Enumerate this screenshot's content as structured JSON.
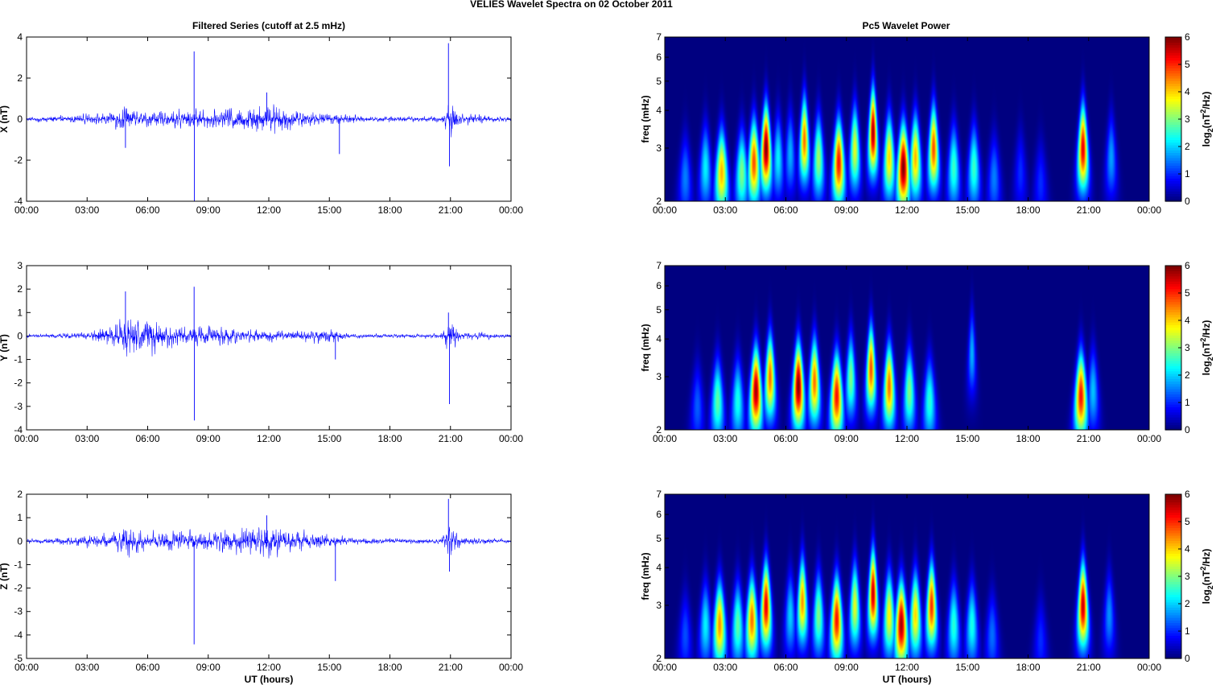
{
  "figure": {
    "title": "VELIES Wavelet Spectra on 02 October   2011",
    "left_title": "Filtered Series (cutoff at 2.5 mHz)",
    "right_title": "Pc5 Wavelet Power"
  },
  "colors": {
    "trace": "#0000ff",
    "axis": "#000000",
    "grid": "#d9d9d9",
    "background": "#00008f"
  },
  "chart_data": [
    {
      "type": "line",
      "name": "X component",
      "xlabel": "",
      "ylabel": "X (nT)",
      "xlim": [
        0,
        24
      ],
      "ylim": [
        -4,
        4
      ],
      "xticks": [
        "00:00",
        "03:00",
        "06:00",
        "09:00",
        "12:00",
        "15:00",
        "18:00",
        "21:00",
        "00:00"
      ],
      "yticks": [
        -4,
        -2,
        0,
        2,
        4
      ],
      "amplitude_envelope": [
        [
          0,
          0.12
        ],
        [
          2,
          0.2
        ],
        [
          4,
          0.3
        ],
        [
          4.8,
          0.7
        ],
        [
          5.5,
          0.4
        ],
        [
          6.5,
          0.4
        ],
        [
          8,
          0.5
        ],
        [
          9,
          0.45
        ],
        [
          10.5,
          0.6
        ],
        [
          11.8,
          0.9
        ],
        [
          13,
          0.6
        ],
        [
          14.5,
          0.3
        ],
        [
          15.5,
          0.3
        ],
        [
          17,
          0.15
        ],
        [
          20.5,
          0.15
        ],
        [
          21,
          1.0
        ],
        [
          21.5,
          0.3
        ],
        [
          24,
          0.1
        ]
      ],
      "spikes": [
        [
          8.3,
          3.3
        ],
        [
          8.31,
          -4.0
        ],
        [
          11.9,
          1.3
        ],
        [
          15.5,
          -1.7
        ],
        [
          20.9,
          3.7
        ],
        [
          20.95,
          -2.3
        ],
        [
          4.9,
          -1.4
        ]
      ]
    },
    {
      "type": "line",
      "name": "Y component",
      "xlabel": "",
      "ylabel": "Y (nT)",
      "xlim": [
        0,
        24
      ],
      "ylim": [
        -4,
        3
      ],
      "xticks": [
        "00:00",
        "03:00",
        "06:00",
        "09:00",
        "12:00",
        "15:00",
        "18:00",
        "21:00",
        "00:00"
      ],
      "yticks": [
        -4,
        -3,
        -2,
        -1,
        0,
        1,
        2,
        3
      ],
      "amplitude_envelope": [
        [
          0,
          0.08
        ],
        [
          3,
          0.15
        ],
        [
          4.5,
          0.6
        ],
        [
          5,
          0.9
        ],
        [
          6.5,
          0.8
        ],
        [
          7.5,
          0.4
        ],
        [
          9,
          0.45
        ],
        [
          10.5,
          0.35
        ],
        [
          11.5,
          0.3
        ],
        [
          13,
          0.2
        ],
        [
          15,
          0.35
        ],
        [
          16,
          0.1
        ],
        [
          20.5,
          0.1
        ],
        [
          21,
          0.8
        ],
        [
          21.5,
          0.2
        ],
        [
          24,
          0.08
        ]
      ],
      "spikes": [
        [
          4.9,
          1.9
        ],
        [
          8.3,
          2.1
        ],
        [
          8.31,
          -3.6
        ],
        [
          20.9,
          1.0
        ],
        [
          20.95,
          -2.9
        ],
        [
          15.3,
          -1.0
        ]
      ]
    },
    {
      "type": "line",
      "name": "Z component",
      "xlabel": "UT (hours)",
      "ylabel": "Z (nT)",
      "xlim": [
        0,
        24
      ],
      "ylim": [
        -5,
        2
      ],
      "xticks": [
        "00:00",
        "03:00",
        "06:00",
        "09:00",
        "12:00",
        "15:00",
        "18:00",
        "21:00",
        "00:00"
      ],
      "yticks": [
        -5,
        -4,
        -3,
        -2,
        -1,
        0,
        1,
        2
      ],
      "amplitude_envelope": [
        [
          0,
          0.08
        ],
        [
          2,
          0.2
        ],
        [
          4.5,
          0.4
        ],
        [
          5,
          0.7
        ],
        [
          6,
          0.4
        ],
        [
          8,
          0.45
        ],
        [
          10.5,
          0.55
        ],
        [
          11.8,
          0.8
        ],
        [
          13,
          0.5
        ],
        [
          15,
          0.35
        ],
        [
          16,
          0.15
        ],
        [
          20.5,
          0.1
        ],
        [
          21,
          0.9
        ],
        [
          21.5,
          0.2
        ],
        [
          24,
          0.08
        ]
      ],
      "spikes": [
        [
          8.3,
          -4.4
        ],
        [
          11.9,
          1.1
        ],
        [
          15.3,
          -1.7
        ],
        [
          20.9,
          1.8
        ],
        [
          20.95,
          -1.3
        ]
      ]
    },
    {
      "type": "heatmap",
      "name": "Pc5 power X",
      "ylabel": "freq (mHz)",
      "colorbar_label": "log2(nT^2/Hz)",
      "xlim": [
        0,
        24
      ],
      "ylim": [
        2,
        7
      ],
      "yscale": "log",
      "xticks": [
        "00:00",
        "03:00",
        "06:00",
        "09:00",
        "12:00",
        "15:00",
        "18:00",
        "21:00",
        "00:00"
      ],
      "yticks": [
        2,
        3,
        4,
        5,
        6,
        7
      ],
      "clim": [
        0,
        6
      ],
      "cticks": [
        0,
        1,
        2,
        3,
        4,
        5,
        6
      ],
      "blobs": [
        [
          1.0,
          2.4,
          1.5
        ],
        [
          2.0,
          2.6,
          2.2
        ],
        [
          2.8,
          2.5,
          4.2
        ],
        [
          3.8,
          2.5,
          3.0
        ],
        [
          4.4,
          2.7,
          4.8
        ],
        [
          5.0,
          3.0,
          6.0
        ],
        [
          5.6,
          2.8,
          2.2
        ],
        [
          6.2,
          2.9,
          1.8
        ],
        [
          6.9,
          3.2,
          4.6
        ],
        [
          7.6,
          2.8,
          3.2
        ],
        [
          8.6,
          2.7,
          5.2
        ],
        [
          9.4,
          3.0,
          3.6
        ],
        [
          10.3,
          3.4,
          5.8
        ],
        [
          11.1,
          2.8,
          4.0
        ],
        [
          11.8,
          2.6,
          6.0
        ],
        [
          12.4,
          2.8,
          4.2
        ],
        [
          13.3,
          3.0,
          4.8
        ],
        [
          14.3,
          2.6,
          2.6
        ],
        [
          15.3,
          2.6,
          2.6
        ],
        [
          16.3,
          2.4,
          1.5
        ],
        [
          17.6,
          2.5,
          1.0
        ],
        [
          18.6,
          2.3,
          1.0
        ],
        [
          20.7,
          3.0,
          5.4
        ],
        [
          22.1,
          2.8,
          1.7
        ]
      ]
    },
    {
      "type": "heatmap",
      "name": "Pc5 power Y",
      "ylabel": "freq (mHz)",
      "colorbar_label": "log2(nT^2/Hz)",
      "xlim": [
        0,
        24
      ],
      "ylim": [
        2,
        7
      ],
      "yscale": "log",
      "xticks": [
        "00:00",
        "03:00",
        "06:00",
        "09:00",
        "12:00",
        "15:00",
        "18:00",
        "21:00",
        "00:00"
      ],
      "yticks": [
        2,
        3,
        4,
        5,
        6,
        7
      ],
      "clim": [
        0,
        6
      ],
      "cticks": [
        0,
        1,
        2,
        3,
        4,
        5,
        6
      ],
      "blobs": [
        [
          1.6,
          2.4,
          1.3
        ],
        [
          2.6,
          2.5,
          2.8
        ],
        [
          3.6,
          2.5,
          2.4
        ],
        [
          4.5,
          2.7,
          5.8
        ],
        [
          5.2,
          3.0,
          4.6
        ],
        [
          6.6,
          2.8,
          6.0
        ],
        [
          7.4,
          2.9,
          4.6
        ],
        [
          8.5,
          2.6,
          5.2
        ],
        [
          9.2,
          3.0,
          3.0
        ],
        [
          10.2,
          3.2,
          4.8
        ],
        [
          11.1,
          2.8,
          4.6
        ],
        [
          12.1,
          2.7,
          3.0
        ],
        [
          13.1,
          2.5,
          2.5
        ],
        [
          15.2,
          3.6,
          1.8
        ],
        [
          20.6,
          2.6,
          5.2
        ],
        [
          21.2,
          2.7,
          1.9
        ]
      ]
    },
    {
      "type": "heatmap",
      "name": "Pc5 power Z",
      "xlabel": "UT (hours)",
      "ylabel": "freq (mHz)",
      "colorbar_label": "log2(nT^2/Hz)",
      "xlim": [
        0,
        24
      ],
      "ylim": [
        2,
        7
      ],
      "yscale": "log",
      "xticks": [
        "00:00",
        "03:00",
        "06:00",
        "09:00",
        "12:00",
        "15:00",
        "18:00",
        "21:00",
        "00:00"
      ],
      "yticks": [
        2,
        3,
        4,
        5,
        6,
        7
      ],
      "clim": [
        0,
        6
      ],
      "cticks": [
        0,
        1,
        2,
        3,
        4,
        5,
        6
      ],
      "blobs": [
        [
          1.0,
          2.4,
          1.2
        ],
        [
          2.0,
          2.6,
          2.2
        ],
        [
          2.7,
          2.6,
          4.4
        ],
        [
          3.6,
          2.6,
          2.8
        ],
        [
          4.3,
          2.7,
          4.6
        ],
        [
          5.0,
          3.0,
          5.4
        ],
        [
          6.2,
          2.8,
          2.0
        ],
        [
          6.8,
          3.1,
          4.4
        ],
        [
          7.6,
          2.8,
          3.0
        ],
        [
          8.5,
          2.7,
          5.2
        ],
        [
          9.4,
          3.0,
          3.6
        ],
        [
          10.3,
          3.3,
          5.6
        ],
        [
          11.1,
          2.8,
          3.8
        ],
        [
          11.7,
          2.6,
          5.8
        ],
        [
          12.4,
          2.8,
          4.0
        ],
        [
          13.2,
          3.0,
          5.0
        ],
        [
          14.3,
          2.6,
          2.5
        ],
        [
          15.2,
          2.6,
          2.4
        ],
        [
          16.2,
          2.4,
          1.4
        ],
        [
          18.6,
          2.3,
          1.0
        ],
        [
          20.7,
          3.0,
          5.6
        ],
        [
          22.0,
          2.8,
          1.6
        ]
      ]
    }
  ]
}
